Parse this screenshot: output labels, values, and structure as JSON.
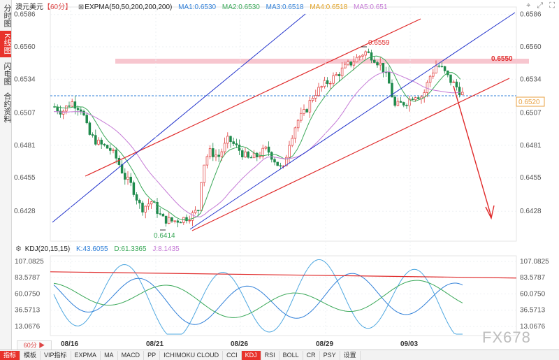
{
  "left_tabs": [
    {
      "label": "分时图",
      "active": false
    },
    {
      "label": "K线图",
      "active": true
    },
    {
      "label": "闪电图",
      "active": false
    },
    {
      "label": "合约资料",
      "active": false
    }
  ],
  "header": {
    "symbol": "澳元美元",
    "period": "【60分】",
    "expma_label": "EXPMA(50,50,200,200,200)",
    "ma1": "MA1:0.6530",
    "ma2": "MA2:0.6530",
    "ma3": "MA3:0.6518",
    "ma4": "MA4:0.6518",
    "ma5": "MA5:0.651"
  },
  "kdj_header": {
    "name": "KDJ(20,15,15)",
    "k": "K:43.6055",
    "d": "D:61.3365",
    "j": "J:8.1435"
  },
  "annotations": {
    "peak": "0.6559",
    "trough": "0.6414",
    "resistance": "0.6550",
    "current_price": "0.6520"
  },
  "colors": {
    "up": "#e03a3a",
    "down": "#1f8a4c",
    "ma_blue": "#2f7fd8",
    "ma_green": "#3aa858",
    "ma_purple": "#c57ad6",
    "channel_red": "#e02b2b",
    "channel_blue": "#2233cc",
    "resistance_band": "#f7c6cf",
    "price_line": "#2f7fd8"
  },
  "chart_data": {
    "type": "candlestick",
    "price_ticks": [
      "0.6586",
      "0.6560",
      "0.6534",
      "0.6507",
      "0.6481",
      "0.6455",
      "0.6428"
    ],
    "date_labels": [
      "08/16",
      "08/21",
      "08/26",
      "08/29",
      "09/03"
    ],
    "kdj_ticks": [
      "107.0825",
      "83.5787",
      "60.0750",
      "36.5713",
      "13.0676"
    ],
    "price_range": [
      0.6404,
      0.6592
    ],
    "kdj_range": [
      0,
      115
    ]
  },
  "bottom_bar": {
    "period_button": "60分 ▶",
    "items": [
      {
        "label": "指标",
        "active": true
      },
      {
        "label": "模板",
        "active": false
      },
      {
        "label": "VIP指标",
        "active": false
      },
      {
        "label": "EXPMA",
        "active": false
      },
      {
        "label": "MA",
        "active": false
      },
      {
        "label": "MACD",
        "active": false
      },
      {
        "label": "PP",
        "active": false
      },
      {
        "label": "ICHIMOKU CLOUD",
        "active": false
      },
      {
        "label": "CCI",
        "active": false
      },
      {
        "label": "KDJ",
        "active": true
      },
      {
        "label": "RSI",
        "active": false
      },
      {
        "label": "BOLL",
        "active": false
      },
      {
        "label": "CR",
        "active": false
      },
      {
        "label": "PSY",
        "active": false
      },
      {
        "label": "设置",
        "active": false
      }
    ]
  },
  "watermark": "FX678"
}
